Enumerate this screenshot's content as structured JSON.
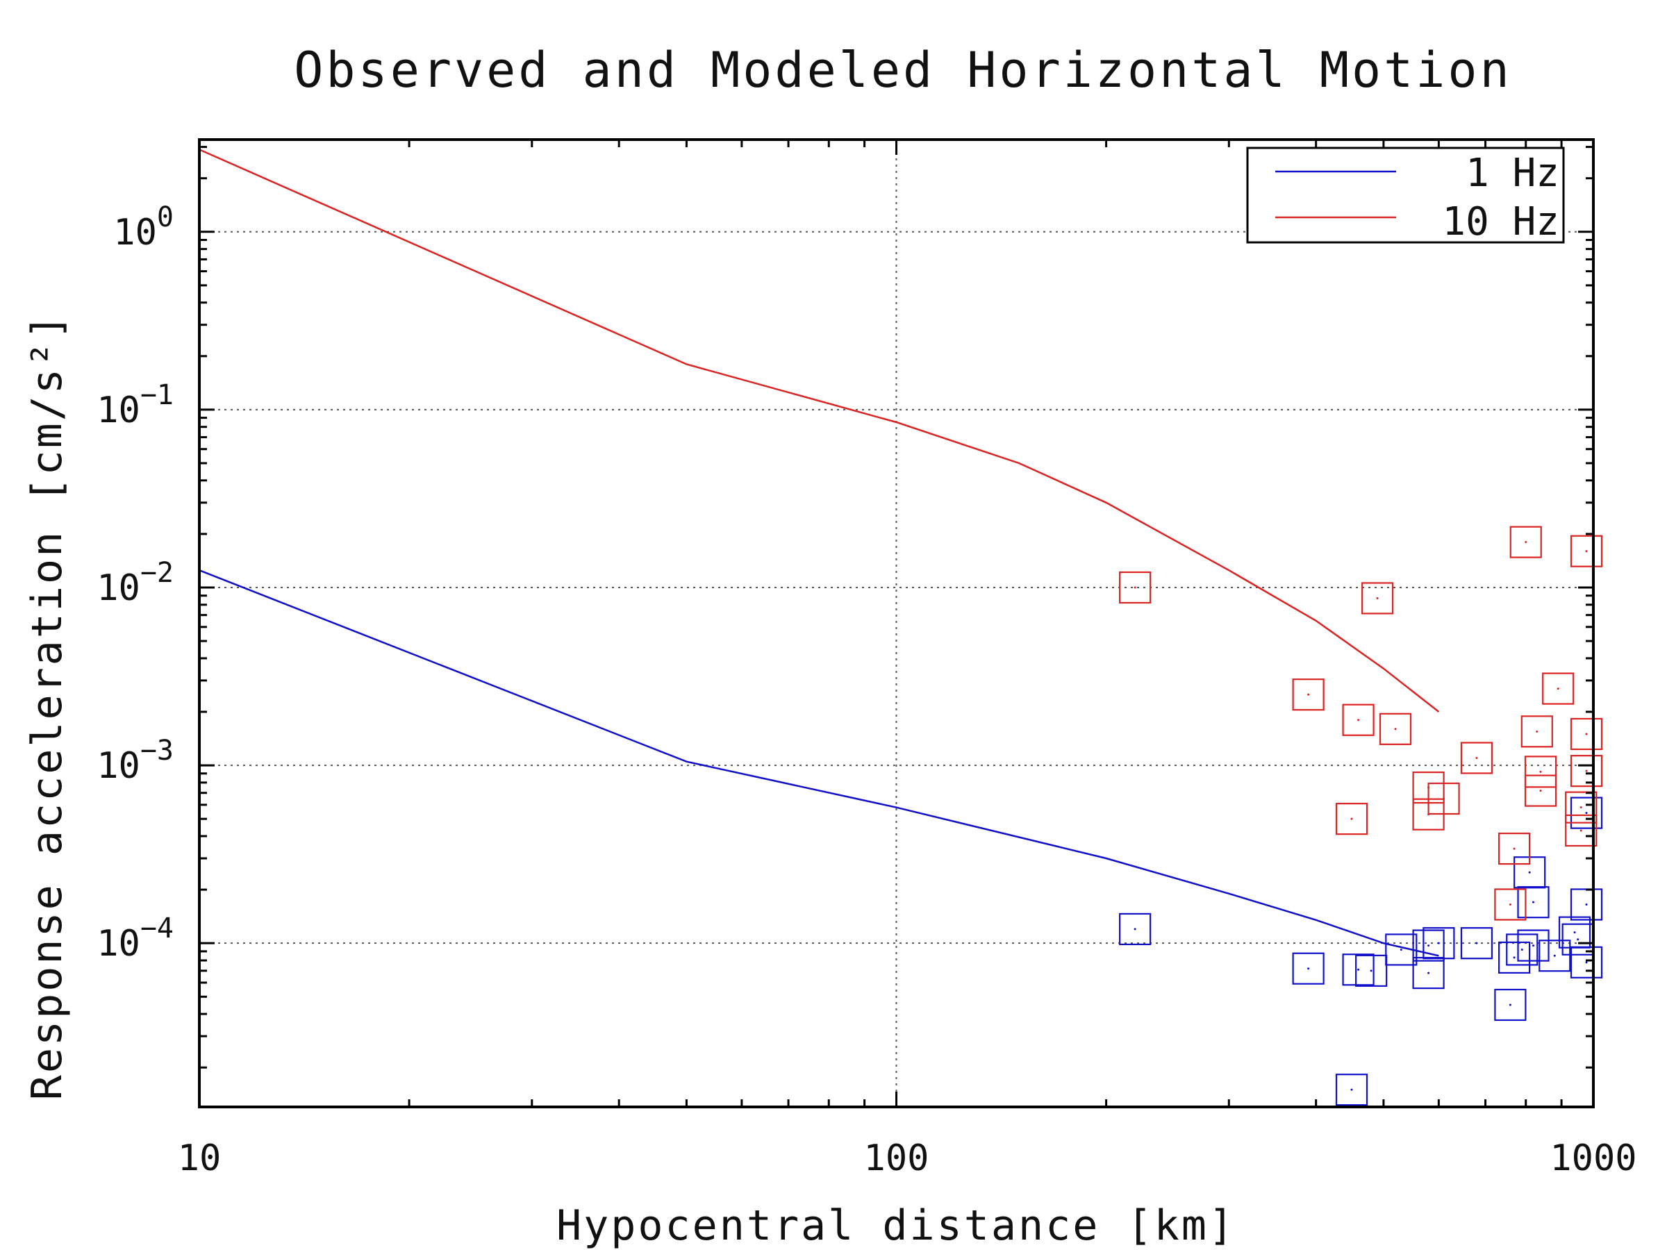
{
  "chart_data": {
    "type": "line",
    "title": "Observed and Modeled Horizontal Motion",
    "xlabel": "Hypocentral distance [km]",
    "ylabel": "Response acceleration [cm/s²]",
    "xscale": "log",
    "yscale": "log",
    "xlim": [
      10,
      1000
    ],
    "ylim": [
      1.2e-05,
      3.3
    ],
    "x_ticks": [
      10,
      100,
      1000
    ],
    "x_tick_labels": [
      "10",
      "100",
      "1000"
    ],
    "y_ticks": [
      1,
      0.1,
      0.01,
      0.001,
      0.0001
    ],
    "y_tick_labels": [
      {
        "base": "10",
        "exp": "0"
      },
      {
        "base": "10",
        "exp": "−1"
      },
      {
        "base": "10",
        "exp": "−2"
      },
      {
        "base": "10",
        "exp": "−3"
      },
      {
        "base": "10",
        "exp": "−4"
      }
    ],
    "grid": true,
    "legend_position": "top-right",
    "series": [
      {
        "name": "1 Hz",
        "color": "#1010cc",
        "line": [
          [
            10,
            0.0125
          ],
          [
            50,
            0.00105
          ],
          [
            100,
            0.00058
          ],
          [
            200,
            0.0003
          ],
          [
            300,
            0.00019
          ],
          [
            400,
            0.000135
          ],
          [
            500,
            0.0001
          ],
          [
            600,
            8.5e-05
          ]
        ],
        "points": [
          [
            220,
            0.00012
          ],
          [
            390,
            7.2e-05
          ],
          [
            460,
            7.1e-05
          ],
          [
            480,
            7e-05
          ],
          [
            530,
            9.2e-05
          ],
          [
            580,
            6.8e-05
          ],
          [
            580,
            9.7e-05
          ],
          [
            600,
            0.0001
          ],
          [
            680,
            0.0001
          ],
          [
            760,
            4.5e-05
          ],
          [
            770,
            8.3e-05
          ],
          [
            790,
            9.2e-05
          ],
          [
            810,
            0.00025
          ],
          [
            820,
            0.00017
          ],
          [
            820,
            9.7e-05
          ],
          [
            880,
            8.5e-05
          ],
          [
            940,
            0.000115
          ],
          [
            950,
            0.000105
          ],
          [
            980,
            0.00054
          ],
          [
            1000,
            0.000165
          ],
          [
            1000,
            7.8e-05
          ],
          [
            450,
            1.5e-05
          ]
        ]
      },
      {
        "name": "10 Hz",
        "color": "#dd2222",
        "line": [
          [
            10,
            2.9
          ],
          [
            50,
            0.18
          ],
          [
            100,
            0.085
          ],
          [
            150,
            0.05
          ],
          [
            200,
            0.03
          ],
          [
            300,
            0.0125
          ],
          [
            400,
            0.0065
          ],
          [
            500,
            0.0035
          ],
          [
            600,
            0.002
          ]
        ],
        "points": [
          [
            220,
            0.01
          ],
          [
            390,
            0.0025
          ],
          [
            460,
            0.0018
          ],
          [
            490,
            0.0087
          ],
          [
            520,
            0.0016
          ],
          [
            580,
            0.00053
          ],
          [
            580,
            0.00075
          ],
          [
            610,
            0.00065
          ],
          [
            680,
            0.0011
          ],
          [
            770,
            0.00034
          ],
          [
            760,
            0.000165
          ],
          [
            800,
            0.018
          ],
          [
            830,
            0.00155
          ],
          [
            840,
            0.00092
          ],
          [
            840,
            0.00072
          ],
          [
            890,
            0.0027
          ],
          [
            960,
            0.00058
          ],
          [
            960,
            0.00043
          ],
          [
            1000,
            0.016
          ],
          [
            1010,
            0.0015
          ],
          [
            1020,
            0.00093
          ],
          [
            450,
            0.0005
          ]
        ]
      }
    ]
  }
}
